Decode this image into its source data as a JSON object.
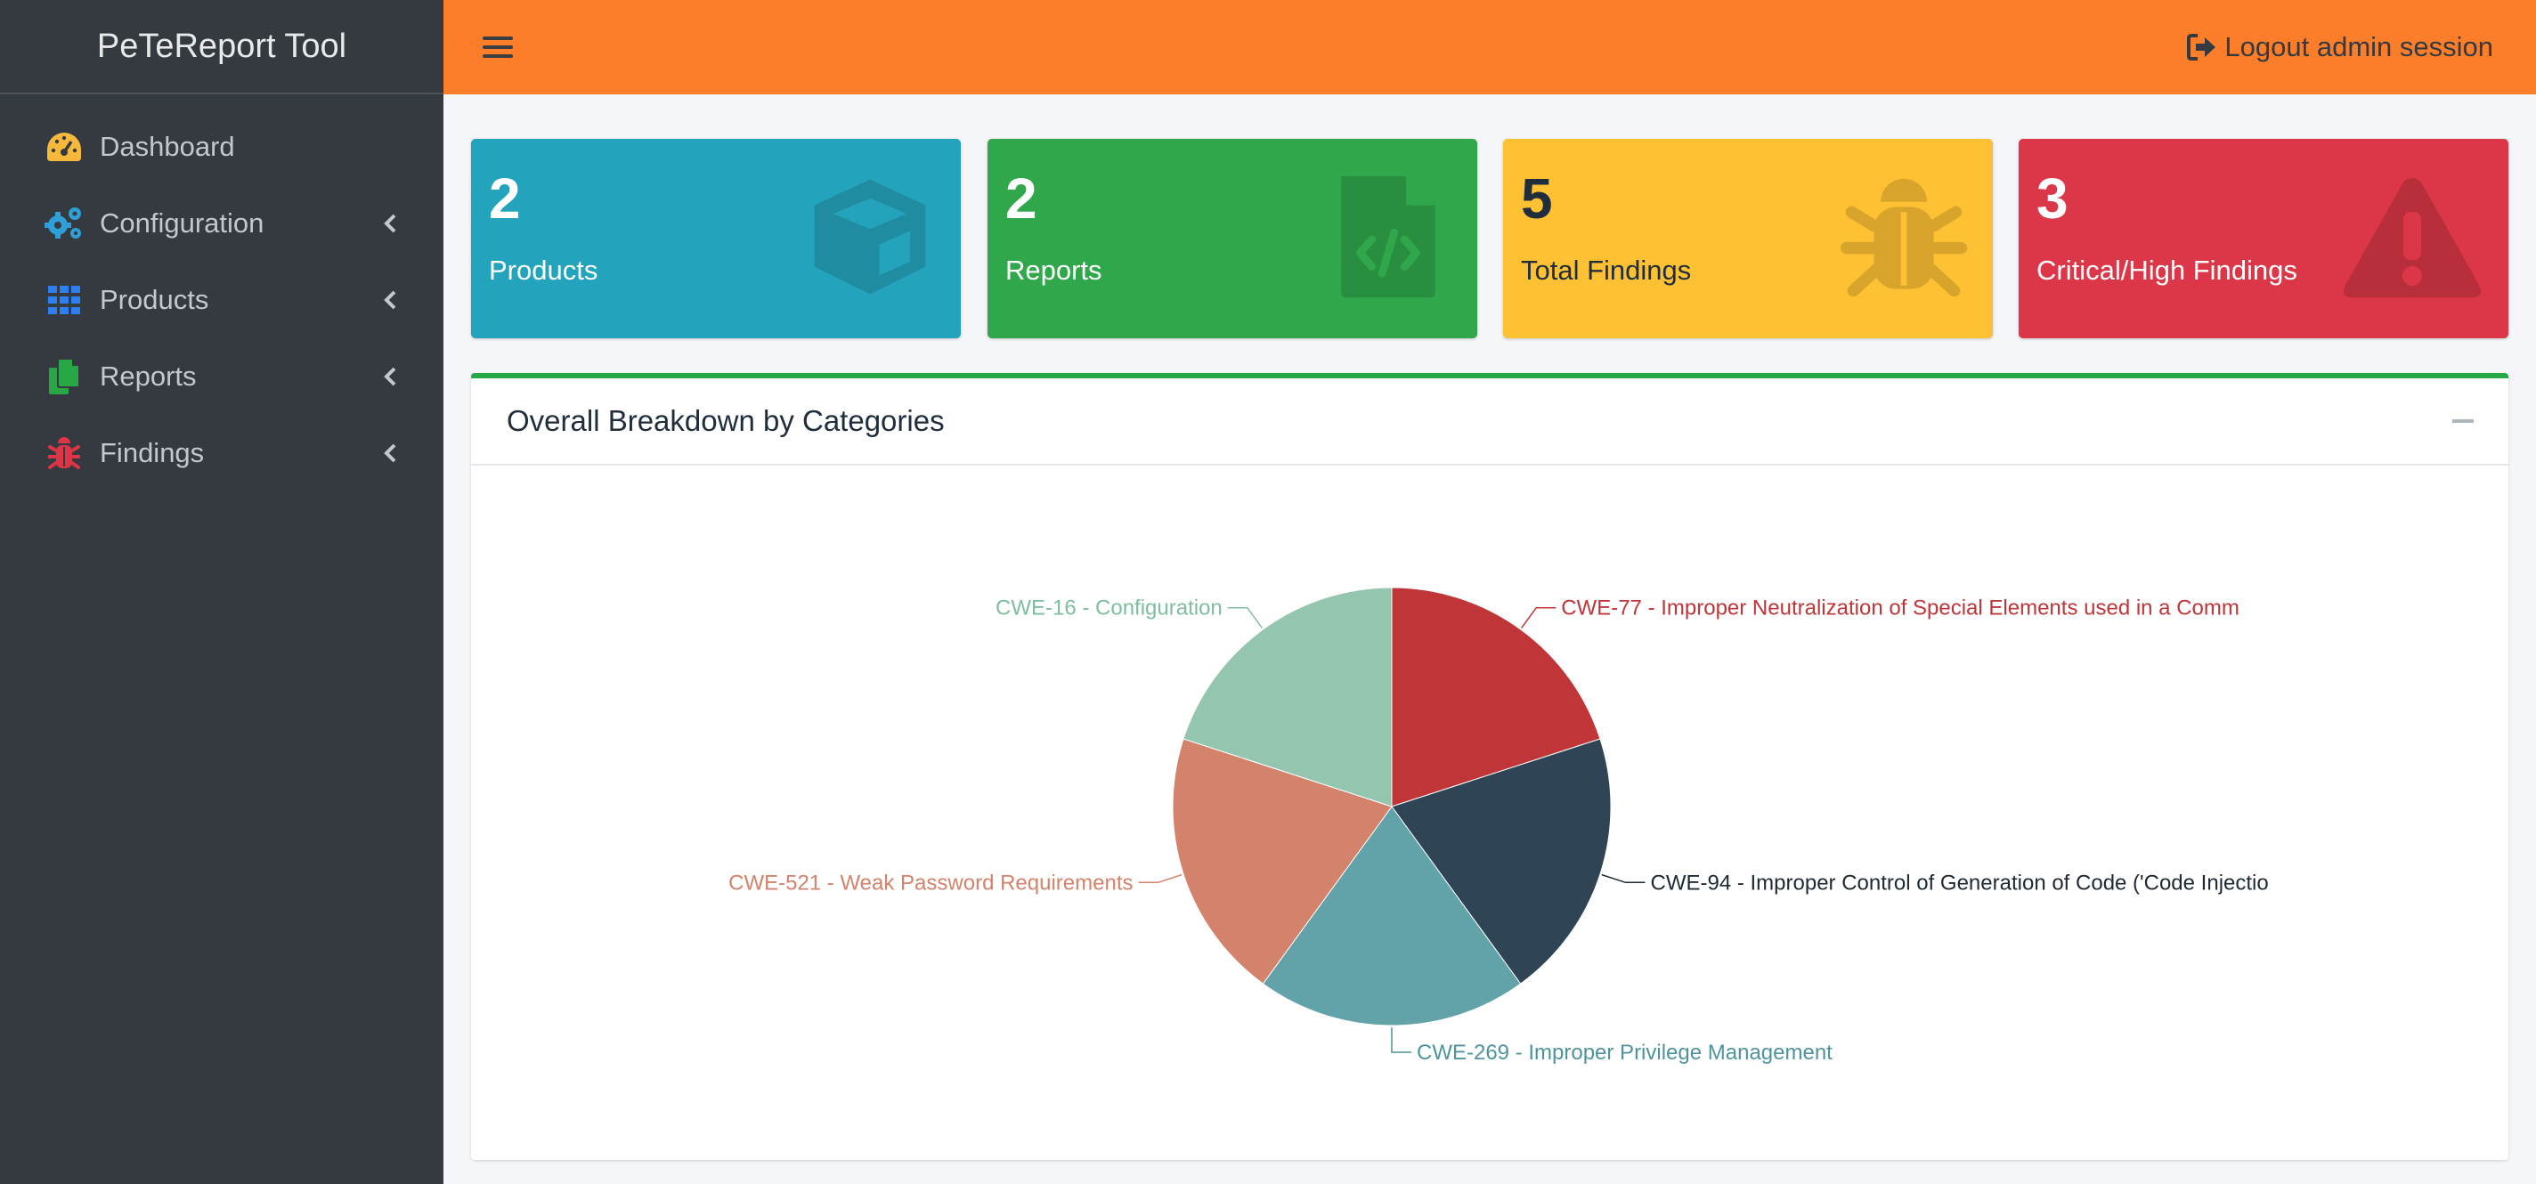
{
  "app": {
    "brand": "PeTeReport Tool"
  },
  "sidebar": {
    "items": [
      {
        "label": "Dashboard",
        "icon": "tachometer-icon",
        "color": "#f6b93b",
        "has_children": false
      },
      {
        "label": "Configuration",
        "icon": "cogs-icon",
        "color": "#2f9fd8",
        "has_children": true
      },
      {
        "label": "Products",
        "icon": "th-grid-icon",
        "color": "#2e7ff0",
        "has_children": true
      },
      {
        "label": "Reports",
        "icon": "copy-files-icon",
        "color": "#28a745",
        "has_children": true
      },
      {
        "label": "Findings",
        "icon": "bug-icon",
        "color": "#dc3545",
        "has_children": true
      }
    ]
  },
  "header": {
    "logout_label": "Logout admin session"
  },
  "info_boxes": [
    {
      "value": "2",
      "label": "Products",
      "color": "#24a3bc",
      "icon": "cube-icon"
    },
    {
      "value": "2",
      "label": "Reports",
      "color": "#30a74b",
      "icon": "file-code-icon"
    },
    {
      "value": "5",
      "label": "Total Findings",
      "color": "#fdc133",
      "icon": "bug-icon"
    },
    {
      "value": "3",
      "label": "Critical/High Findings",
      "color": "#dc3748",
      "icon": "warning-triangle-icon"
    }
  ],
  "card": {
    "title": "Overall Breakdown by Categories"
  },
  "chart_data": {
    "type": "pie",
    "slices": [
      {
        "label": "CWE-77 - Improper Neutralization of Special Elements used in a Comm",
        "value": 1,
        "color": "#c03537",
        "label_color": "#c03537"
      },
      {
        "label": "CWE-94 - Improper Control of Generation of Code ('Code Injectio",
        "value": 1,
        "color": "#2f4454",
        "label_color": "#1e2a33"
      },
      {
        "label": "CWE-269 - Improper Privilege Management",
        "value": 1,
        "color": "#62a2a9",
        "label_color": "#4f949c"
      },
      {
        "label": "CWE-521 - Weak Password Requirements",
        "value": 1,
        "color": "#d3826b",
        "label_color": "#d3826b"
      },
      {
        "label": "CWE-16 - Configuration",
        "value": 1,
        "color": "#94c5ae",
        "label_color": "#7fbd9f"
      }
    ]
  }
}
